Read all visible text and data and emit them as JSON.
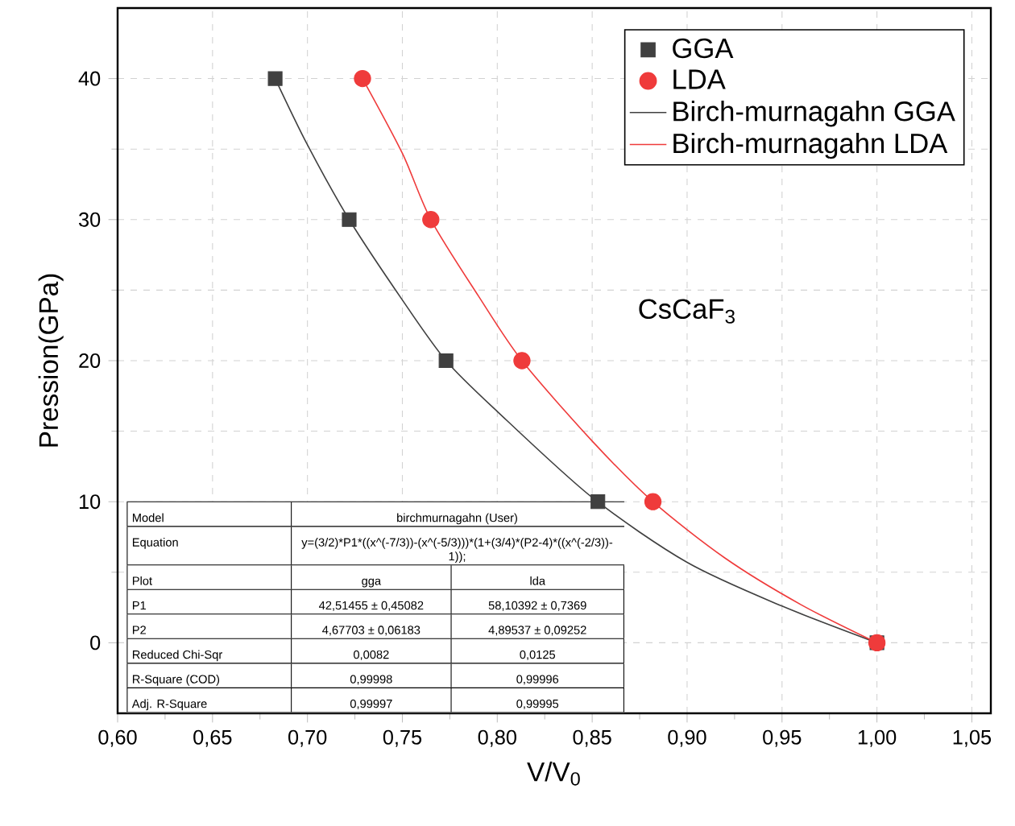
{
  "chart_data": {
    "type": "scatter",
    "xlabel": "V/V$_{0}$",
    "ylabel": "Pression(GPa)",
    "xlim": [
      0.6,
      1.06
    ],
    "ylim": [
      -5,
      45
    ],
    "xticks": [
      {
        "value": 0.6,
        "label": "0,60"
      },
      {
        "value": 0.65,
        "label": "0,65"
      },
      {
        "value": 0.7,
        "label": "0,70"
      },
      {
        "value": 0.75,
        "label": "0,75"
      },
      {
        "value": 0.8,
        "label": "0,80"
      },
      {
        "value": 0.85,
        "label": "0,85"
      },
      {
        "value": 0.9,
        "label": "0,90"
      },
      {
        "value": 0.95,
        "label": "0,95"
      },
      {
        "value": 1.0,
        "label": "1,00"
      },
      {
        "value": 1.05,
        "label": "1,05"
      }
    ],
    "yticks": [
      0,
      10,
      20,
      30,
      40
    ],
    "grid": true,
    "legend": "top right",
    "series": [
      {
        "name": "GGA",
        "marker": "square",
        "color": "#404040",
        "x": [
          0.683,
          0.722,
          0.773,
          0.853,
          1.0
        ],
        "values": [
          40,
          30,
          20,
          10,
          0
        ]
      },
      {
        "name": "LDA",
        "marker": "circle",
        "color": "#ef3b3b",
        "x": [
          0.729,
          0.765,
          0.813,
          0.882,
          1.0
        ],
        "values": [
          40,
          30,
          20,
          10,
          0
        ]
      },
      {
        "name": "Birch-murnagahn GGA",
        "type": "line",
        "color": "#404040",
        "x": [
          0.683,
          0.7,
          0.722,
          0.75,
          0.773,
          0.8,
          0.85,
          0.9,
          0.95,
          1.0
        ],
        "values": [
          40,
          35.3,
          30,
          24.3,
          20,
          16.4,
          10.3,
          5.7,
          2.6,
          0
        ]
      },
      {
        "name": "Birch-murnagahn LDA",
        "type": "line",
        "color": "#ef3b3b",
        "x": [
          0.729,
          0.75,
          0.765,
          0.79,
          0.813,
          0.85,
          0.882,
          0.92,
          0.96,
          1.0
        ],
        "values": [
          40,
          34.7,
          30,
          24.6,
          20,
          14.3,
          10,
          6,
          2.7,
          0
        ]
      }
    ],
    "annotations": [
      "CsCaF$_{3}$",
      "Model",
      "birchmurnagahn (User)",
      "Equation",
      "y=(3/2)*",
      "P1*",
      "((x^(-7/3))-(x^(-5/3)))*",
      "(1+(3/4)*",
      "(P2-4)*",
      "((x^(-2/3))-1));",
      "Plot",
      "gga",
      "lda",
      "P1",
      "42,51455 ± 0,45082",
      "58,10392 ± 0,7369",
      "P2",
      "4,67703 ± 0,06183",
      "4,89537 ± 0,09252",
      "Reduced Chi-Sqr",
      "0,0082",
      "0,0125",
      "R-Square (COD)",
      "0,99998",
      "0,99996",
      "Adj. R-Square",
      "0,99997",
      "0,99995"
    ]
  }
}
